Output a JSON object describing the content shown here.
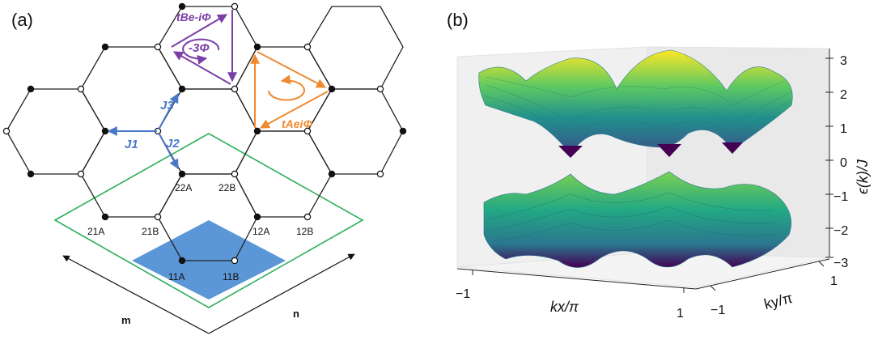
{
  "panel_a": {
    "label": "(a)",
    "hop_left": "J1",
    "hop_right": "J2",
    "hop_up": "J3",
    "flux_purple": "-3Φ",
    "flux_orange": "3Φ",
    "hopping_purple": "tBe-iΦ",
    "hopping_orange": "tAeiΦ",
    "site_labels": [
      "22A",
      "22B",
      "21A",
      "21B",
      "12A",
      "12B",
      "11A",
      "11B"
    ],
    "axis_m": "m",
    "axis_n": "n",
    "colors": {
      "lattice": "#222222",
      "blue_arrows": "#4a78c8",
      "purple": "#7b3fa8",
      "orange": "#ef8a30",
      "cell_outline": "#2fae5f",
      "unit_cell_fill": "#5b97d6"
    }
  },
  "panel_b": {
    "label": "(b)",
    "colormap": "viridis"
  },
  "chart_data": {
    "type": "surface",
    "title": "",
    "xlabel": "kx/π",
    "ylabel": "ky/π",
    "zlabel": "ϵ(k)/J",
    "xlim": [
      -1,
      1
    ],
    "ylim": [
      -1,
      1
    ],
    "zlim": [
      -3,
      3
    ],
    "x_ticks": [
      "−1",
      "1"
    ],
    "y_ticks": [
      "−1",
      "1"
    ],
    "z_ticks": [
      "3",
      "2",
      "1",
      "0",
      "−1",
      "−2",
      "−3"
    ],
    "bands": [
      {
        "name": "upper",
        "max": 3,
        "min": 0
      },
      {
        "name": "lower",
        "max": 0,
        "min": -3
      }
    ]
  }
}
